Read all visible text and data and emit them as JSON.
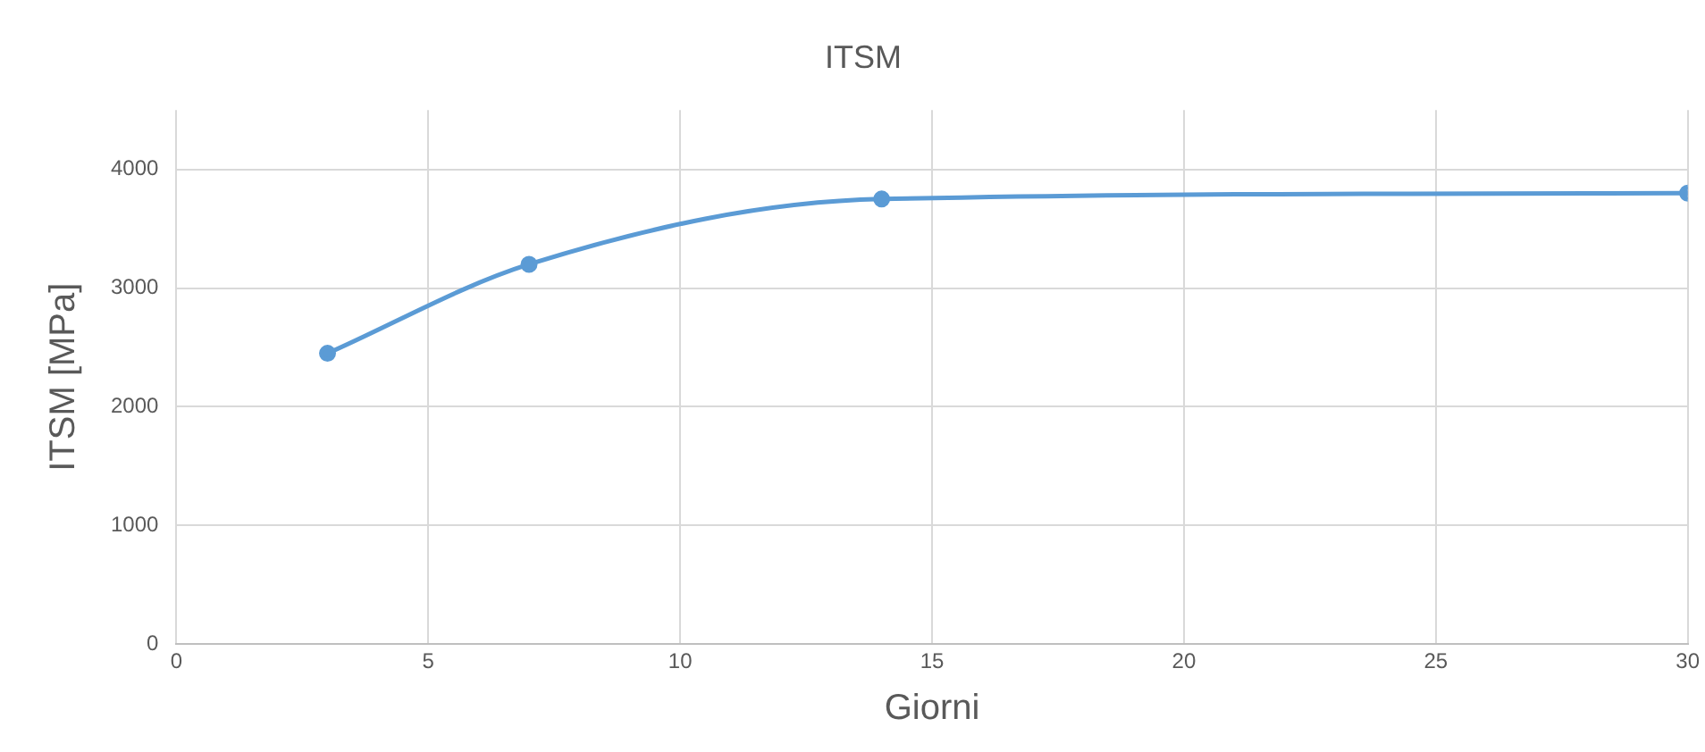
{
  "chart_data": {
    "type": "line",
    "title": "ITSM",
    "xlabel": "Giorni",
    "ylabel": "ITSM [MPa]",
    "x": [
      3,
      7,
      14,
      30
    ],
    "series": [
      {
        "color": "#5b9bd5",
        "values": [
          2450,
          3200,
          3750,
          3800
        ]
      }
    ],
    "xlim": [
      0,
      30
    ],
    "xticks": [
      0,
      5,
      10,
      15,
      20,
      25,
      30
    ],
    "ylim": [
      0,
      4500
    ],
    "yticks": [
      0,
      1000,
      2000,
      3000,
      4000
    ],
    "grid": true,
    "legend": false,
    "marker": "circle",
    "line_style": "solid"
  }
}
